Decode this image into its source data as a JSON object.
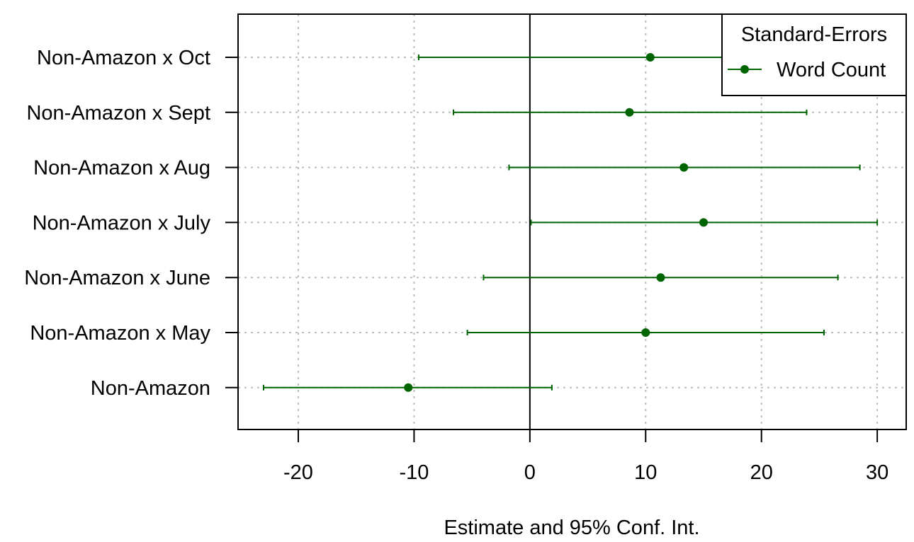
{
  "chart_data": {
    "type": "scatter",
    "subtype": "coefficient-plot-with-error-bars",
    "xlabel": "Estimate and 95% Conf. Int.",
    "ylabel": "",
    "xlim": [
      -25.2,
      32.5
    ],
    "xticks": [
      -20,
      -10,
      0,
      10,
      20,
      30
    ],
    "reference_line_x": 0,
    "grid": true,
    "categories": [
      "Non-Amazon x Oct",
      "Non-Amazon x Sept",
      "Non-Amazon x Aug",
      "Non-Amazon x July",
      "Non-Amazon x June",
      "Non-Amazon x May",
      "Non-Amazon"
    ],
    "series": [
      {
        "name": "Word Count",
        "color": "#006400",
        "estimates": [
          10.4,
          8.6,
          13.3,
          15.0,
          11.3,
          10.0,
          -10.5
        ],
        "ci_low": [
          -9.6,
          -6.6,
          -1.8,
          0.1,
          -4.0,
          -5.4,
          -23.0
        ],
        "ci_high": [
          30.4,
          23.9,
          28.5,
          30.0,
          26.6,
          25.4,
          1.9
        ]
      }
    ],
    "legend": {
      "title": "Standard-Errors",
      "placement": "top-right"
    }
  }
}
